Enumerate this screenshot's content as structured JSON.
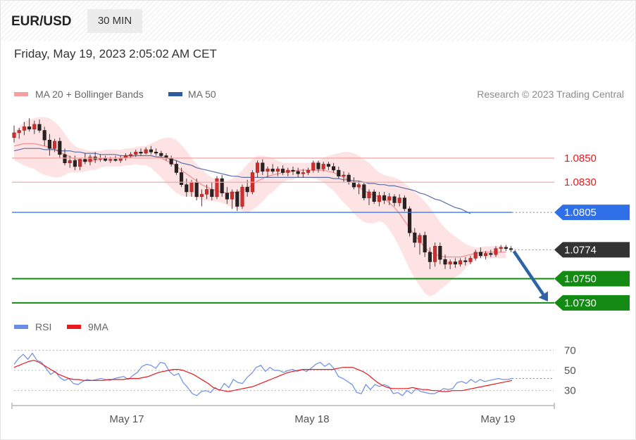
{
  "header": {
    "symbol": "EUR/USD",
    "timeframe": "30 MIN",
    "datetime": "Friday, May 19, 2023 2:05:02 AM CET"
  },
  "legend": {
    "ma20": "MA 20 + Bollinger Bands",
    "ma50": "MA 50",
    "rsi": "RSI",
    "rsi_ma": "9MA"
  },
  "copyright": "Research © 2023 Trading Central",
  "colors": {
    "ma20": "#f08e8e",
    "band": "#fcd9d9",
    "ma50": "#5b6fa8",
    "support": "#138a13",
    "resistance_line": "#f4a8a8",
    "resistance_text": "#e8181c",
    "pivot": "#2f6fe8",
    "last": "#333333",
    "arrow": "#2e63a5",
    "rsi": "#6a8ee8",
    "rsi_ma": "#e8181c"
  },
  "chart_data": {
    "type": "candlestick",
    "price_range": [
      1.0727,
      1.0889
    ],
    "levels": [
      {
        "value": 1.085,
        "label": "1.0850",
        "kind": "resistance"
      },
      {
        "value": 1.083,
        "label": "1.0830",
        "kind": "resistance"
      },
      {
        "value": 1.0805,
        "label": "1.0805",
        "kind": "pivot"
      },
      {
        "value": 1.0774,
        "label": "1.0774",
        "kind": "last"
      },
      {
        "value": 1.075,
        "label": "1.0750",
        "kind": "support"
      },
      {
        "value": 1.073,
        "label": "1.0730",
        "kind": "support"
      }
    ],
    "x_labels": [
      "May 17",
      "May 18",
      "May 19"
    ],
    "ohlc": [
      [
        1.0867,
        1.0877,
        1.0863,
        1.0871
      ],
      [
        1.0871,
        1.0875,
        1.0866,
        1.0873
      ],
      [
        1.0873,
        1.088,
        1.0869,
        1.0876
      ],
      [
        1.0876,
        1.0883,
        1.0872,
        1.0874
      ],
      [
        1.0874,
        1.0881,
        1.087,
        1.0878
      ],
      [
        1.0878,
        1.0882,
        1.0871,
        1.0873
      ],
      [
        1.0873,
        1.0876,
        1.086,
        1.0865
      ],
      [
        1.0865,
        1.087,
        1.0852,
        1.0858
      ],
      [
        1.0858,
        1.0866,
        1.0855,
        1.0864
      ],
      [
        1.0864,
        1.0867,
        1.085,
        1.0853
      ],
      [
        1.0853,
        1.0858,
        1.0844,
        1.0846
      ],
      [
        1.0846,
        1.0852,
        1.0842,
        1.0848
      ],
      [
        1.0848,
        1.0852,
        1.084,
        1.0843
      ],
      [
        1.0843,
        1.085,
        1.084,
        1.0849
      ],
      [
        1.0849,
        1.0854,
        1.0845,
        1.0847
      ],
      [
        1.0847,
        1.0853,
        1.0844,
        1.0851
      ],
      [
        1.0851,
        1.0855,
        1.0846,
        1.0849
      ],
      [
        1.0849,
        1.0853,
        1.0847,
        1.085
      ],
      [
        1.085,
        1.0852,
        1.0847,
        1.0848
      ],
      [
        1.0848,
        1.0851,
        1.0846,
        1.0849
      ],
      [
        1.0849,
        1.0852,
        1.0847,
        1.0848
      ],
      [
        1.0848,
        1.0852,
        1.0846,
        1.085
      ],
      [
        1.085,
        1.0854,
        1.0848,
        1.0852
      ],
      [
        1.0852,
        1.0855,
        1.085,
        1.0853
      ],
      [
        1.0853,
        1.0857,
        1.0851,
        1.0855
      ],
      [
        1.0855,
        1.0858,
        1.0852,
        1.0854
      ],
      [
        1.0854,
        1.0859,
        1.0853,
        1.0857
      ],
      [
        1.0857,
        1.086,
        1.0853,
        1.0855
      ],
      [
        1.0855,
        1.0858,
        1.0852,
        1.0854
      ],
      [
        1.0854,
        1.0856,
        1.085,
        1.0852
      ],
      [
        1.0852,
        1.0854,
        1.0848,
        1.085
      ],
      [
        1.085,
        1.0852,
        1.0843,
        1.0845
      ],
      [
        1.0845,
        1.0848,
        1.0836,
        1.0838
      ],
      [
        1.0838,
        1.0842,
        1.0826,
        1.0828
      ],
      [
        1.0828,
        1.0833,
        1.0818,
        1.0822
      ],
      [
        1.0822,
        1.0832,
        1.0818,
        1.083
      ],
      [
        1.083,
        1.0833,
        1.0815,
        1.0818
      ],
      [
        1.0818,
        1.0824,
        1.081,
        1.082
      ],
      [
        1.082,
        1.0828,
        1.0816,
        1.0824
      ],
      [
        1.0824,
        1.083,
        1.0815,
        1.0818
      ],
      [
        1.0818,
        1.0835,
        1.0816,
        1.0833
      ],
      [
        1.0833,
        1.0836,
        1.0818,
        1.0821
      ],
      [
        1.0821,
        1.0826,
        1.0812,
        1.0816
      ],
      [
        1.0816,
        1.0824,
        1.0808,
        1.0822
      ],
      [
        1.0822,
        1.0824,
        1.0806,
        1.081
      ],
      [
        1.081,
        1.0828,
        1.0808,
        1.0826
      ],
      [
        1.0826,
        1.0832,
        1.0818,
        1.0822
      ],
      [
        1.0822,
        1.084,
        1.082,
        1.0838
      ],
      [
        1.0838,
        1.0848,
        1.0834,
        1.0846
      ],
      [
        1.0846,
        1.0849,
        1.0836,
        1.0839
      ],
      [
        1.0839,
        1.0843,
        1.0834,
        1.0841
      ],
      [
        1.0841,
        1.0845,
        1.0837,
        1.0839
      ],
      [
        1.0839,
        1.0843,
        1.0835,
        1.0841
      ],
      [
        1.0841,
        1.0844,
        1.0836,
        1.0838
      ],
      [
        1.0838,
        1.0842,
        1.0835,
        1.084
      ],
      [
        1.084,
        1.0843,
        1.0836,
        1.0839
      ],
      [
        1.0839,
        1.0842,
        1.0834,
        1.0837
      ],
      [
        1.0837,
        1.0841,
        1.0834,
        1.0838
      ],
      [
        1.0838,
        1.0842,
        1.0836,
        1.084
      ],
      [
        1.084,
        1.0848,
        1.0838,
        1.0846
      ],
      [
        1.0846,
        1.0848,
        1.0838,
        1.0841
      ],
      [
        1.0841,
        1.0847,
        1.0839,
        1.0845
      ],
      [
        1.0845,
        1.0847,
        1.084,
        1.0843
      ],
      [
        1.0843,
        1.0846,
        1.0838,
        1.084
      ],
      [
        1.084,
        1.0843,
        1.0833,
        1.0835
      ],
      [
        1.0835,
        1.0839,
        1.083,
        1.0836
      ],
      [
        1.0836,
        1.0838,
        1.0828,
        1.083
      ],
      [
        1.083,
        1.0834,
        1.0824,
        1.0826
      ],
      [
        1.0826,
        1.0831,
        1.082,
        1.0828
      ],
      [
        1.0828,
        1.083,
        1.0815,
        1.0817
      ],
      [
        1.0817,
        1.0824,
        1.0811,
        1.0822
      ],
      [
        1.0822,
        1.0824,
        1.0812,
        1.0814
      ],
      [
        1.0814,
        1.0822,
        1.081,
        1.0819
      ],
      [
        1.0819,
        1.0822,
        1.0812,
        1.0815
      ],
      [
        1.0815,
        1.0821,
        1.0811,
        1.0818
      ],
      [
        1.0818,
        1.082,
        1.081,
        1.0813
      ],
      [
        1.0813,
        1.082,
        1.081,
        1.0817
      ],
      [
        1.0817,
        1.0819,
        1.0806,
        1.0808
      ],
      [
        1.0808,
        1.081,
        1.0785,
        1.0788
      ],
      [
        1.0788,
        1.0792,
        1.0776,
        1.078
      ],
      [
        1.078,
        1.0788,
        1.077,
        1.0786
      ],
      [
        1.0786,
        1.0789,
        1.0768,
        1.0772
      ],
      [
        1.0772,
        1.0776,
        1.0758,
        1.0764
      ],
      [
        1.0764,
        1.078,
        1.076,
        1.0777
      ],
      [
        1.0777,
        1.078,
        1.0762,
        1.0766
      ],
      [
        1.0766,
        1.077,
        1.0758,
        1.0762
      ],
      [
        1.0762,
        1.0766,
        1.0758,
        1.0764
      ],
      [
        1.0764,
        1.0767,
        1.0759,
        1.0762
      ],
      [
        1.0762,
        1.0767,
        1.076,
        1.0765
      ],
      [
        1.0765,
        1.0768,
        1.0761,
        1.0764
      ],
      [
        1.0764,
        1.0769,
        1.0762,
        1.0767
      ],
      [
        1.0767,
        1.0774,
        1.0765,
        1.0772
      ],
      [
        1.0772,
        1.0776,
        1.0767,
        1.0769
      ],
      [
        1.0769,
        1.0773,
        1.0766,
        1.0771
      ],
      [
        1.0771,
        1.0774,
        1.0768,
        1.077
      ],
      [
        1.077,
        1.0777,
        1.0768,
        1.0775
      ],
      [
        1.0775,
        1.0778,
        1.0772,
        1.0776
      ],
      [
        1.0776,
        1.0778,
        1.0773,
        1.0775
      ],
      [
        1.0775,
        1.0777,
        1.0772,
        1.0774
      ]
    ],
    "ma20": [
      1.086,
      1.0861,
      1.0862,
      1.0862,
      1.0862,
      1.0861,
      1.086,
      1.0859,
      1.0857,
      1.0855,
      1.0853,
      1.0851,
      1.0849,
      1.0848,
      1.0848,
      1.0848,
      1.0848,
      1.0849,
      1.085,
      1.085,
      1.085,
      1.085,
      1.0851,
      1.0851,
      1.0852,
      1.0852,
      1.0852,
      1.0852,
      1.0851,
      1.085,
      1.0848,
      1.0846,
      1.0843,
      1.084,
      1.0837,
      1.0834,
      1.0831,
      1.0828,
      1.0826,
      1.0824,
      1.0823,
      1.0822,
      1.0821,
      1.0821,
      1.0822,
      1.0823,
      1.0825,
      1.0828,
      1.0831,
      1.0833,
      1.0835,
      1.0836,
      1.0837,
      1.0838,
      1.0839,
      1.0839,
      1.084,
      1.084,
      1.084,
      1.084,
      1.084,
      1.084,
      1.0839,
      1.0838,
      1.0836,
      1.0834,
      1.0832,
      1.0829,
      1.0826,
      1.0823,
      1.0821,
      1.0819,
      1.0818,
      1.0816,
      1.0813,
      1.0809,
      1.0804,
      1.0798,
      1.0792,
      1.0786,
      1.0781,
      1.0776,
      1.0772,
      1.077,
      1.0769,
      1.0768,
      1.0768,
      1.0768,
      1.0768,
      1.0769,
      1.077,
      1.0771,
      1.0772,
      1.0772,
      1.0772,
      1.0772,
      1.0772,
      1.0772
    ],
    "band_upper": [
      1.0872,
      1.0876,
      1.088,
      1.0882,
      1.0883,
      1.0884,
      1.0884,
      1.0883,
      1.088,
      1.0876,
      1.087,
      1.0864,
      1.086,
      1.0858,
      1.0857,
      1.0856,
      1.0856,
      1.0856,
      1.0857,
      1.0857,
      1.0857,
      1.0857,
      1.0858,
      1.0858,
      1.0859,
      1.086,
      1.086,
      1.0862,
      1.0864,
      1.0866,
      1.0867,
      1.0867,
      1.0865,
      1.0861,
      1.0856,
      1.085,
      1.0845,
      1.0841,
      1.0837,
      1.0834,
      1.0832,
      1.0831,
      1.0831,
      1.0833,
      1.0836,
      1.084,
      1.0845,
      1.0849,
      1.0852,
      1.0852,
      1.0851,
      1.085,
      1.0848,
      1.0846,
      1.0846,
      1.0846,
      1.0846,
      1.0846,
      1.0846,
      1.0847,
      1.0848,
      1.085,
      1.0852,
      1.0853,
      1.0854,
      1.0855,
      1.0855,
      1.0854,
      1.0852,
      1.0849,
      1.0846,
      1.0842,
      1.0838,
      1.0836,
      1.0835,
      1.0834,
      1.0832,
      1.0829,
      1.0826,
      1.0822,
      1.0818,
      1.0814,
      1.0809,
      1.0803,
      1.0797,
      1.0792,
      1.0788,
      1.0785,
      1.0782,
      1.0779,
      1.0777,
      1.0776,
      1.0776,
      1.0777,
      1.0777,
      1.0777,
      1.0777,
      1.0777
    ],
    "band_lower": [
      1.0848,
      1.0846,
      1.0844,
      1.0842,
      1.0841,
      1.0838,
      1.0836,
      1.0835,
      1.0834,
      1.0834,
      1.0836,
      1.0838,
      1.0838,
      1.0838,
      1.0839,
      1.084,
      1.084,
      1.0842,
      1.0843,
      1.0843,
      1.0843,
      1.0843,
      1.0844,
      1.0844,
      1.0845,
      1.0844,
      1.0844,
      1.0842,
      1.0838,
      1.0834,
      1.0829,
      1.0825,
      1.0821,
      1.0819,
      1.0818,
      1.0818,
      1.0817,
      1.0815,
      1.0815,
      1.0814,
      1.0814,
      1.0813,
      1.0811,
      1.0809,
      1.0808,
      1.0806,
      1.0805,
      1.0807,
      1.081,
      1.0814,
      1.0819,
      1.0822,
      1.0826,
      1.083,
      1.0832,
      1.0832,
      1.0834,
      1.0834,
      1.0834,
      1.0833,
      1.0832,
      1.083,
      1.0826,
      1.0823,
      1.0818,
      1.0813,
      1.0809,
      1.0804,
      1.08,
      1.0797,
      1.0796,
      1.0796,
      1.0798,
      1.0796,
      1.0791,
      1.0784,
      1.0776,
      1.0767,
      1.0758,
      1.075,
      1.0744,
      1.0738,
      1.0735,
      1.0737,
      1.0741,
      1.0744,
      1.0748,
      1.0751,
      1.0754,
      1.0759,
      1.0763,
      1.0766,
      1.0768,
      1.0767,
      1.0767,
      1.0767,
      1.0767,
      1.0767
    ],
    "ma50": [
      1.0856,
      1.0857,
      1.0858,
      1.0858,
      1.0858,
      1.0858,
      1.0857,
      1.0857,
      1.0857,
      1.0856,
      1.0856,
      1.0856,
      1.0855,
      1.0855,
      1.0854,
      1.0854,
      1.0854,
      1.0853,
      1.0853,
      1.0853,
      1.0853,
      1.0852,
      1.0852,
      1.0852,
      1.0852,
      1.0852,
      1.0852,
      1.0852,
      1.0851,
      1.0851,
      1.085,
      1.0849,
      1.0848,
      1.0846,
      1.0845,
      1.0844,
      1.0842,
      1.0841,
      1.084,
      1.0839,
      1.0838,
      1.0837,
      1.0836,
      1.0835,
      1.0835,
      1.0834,
      1.0834,
      1.0834,
      1.0834,
      1.0834,
      1.0834,
      1.0834,
      1.0834,
      1.0834,
      1.0834,
      1.0834,
      1.0834,
      1.0834,
      1.0834,
      1.0834,
      1.0834,
      1.0834,
      1.0834,
      1.0833,
      1.0833,
      1.0832,
      1.0832,
      1.0831,
      1.0831,
      1.083,
      1.0829,
      1.0829,
      1.0828,
      1.0828,
      1.0827,
      1.0827,
      1.0826,
      1.0825,
      1.0824,
      1.0823,
      1.0821,
      1.082,
      1.0818,
      1.0816,
      1.0815,
      1.0813,
      1.0811,
      1.0809,
      1.0808,
      1.0806,
      1.0804
    ],
    "rsi_levels": [
      70,
      50,
      30
    ],
    "rsi_range": [
      20,
      80
    ],
    "rsi": [
      56,
      62,
      66,
      61,
      67,
      60,
      58,
      52,
      46,
      49,
      43,
      40,
      42,
      37,
      36,
      39,
      41,
      40,
      41,
      42,
      41,
      40,
      42,
      43,
      44,
      41,
      45,
      48,
      54,
      56,
      55,
      52,
      58,
      57,
      49,
      45,
      47,
      38,
      33,
      27,
      25,
      29,
      30,
      28,
      33,
      30,
      37,
      33,
      41,
      38,
      37,
      43,
      47,
      53,
      55,
      49,
      53,
      50,
      50,
      48,
      50,
      51,
      49,
      51,
      49,
      52,
      56,
      58,
      54,
      57,
      52,
      44,
      42,
      39,
      36,
      28,
      27,
      36,
      31,
      36,
      34,
      36,
      34,
      27,
      28,
      25,
      30,
      27,
      32,
      29,
      28,
      27,
      27,
      29,
      32,
      31,
      32,
      38,
      39,
      37,
      41,
      38,
      41,
      39,
      40,
      41,
      42,
      41,
      41,
      42
    ],
    "rsi_ma": [
      53,
      55,
      57,
      59,
      60,
      58,
      55,
      52,
      49,
      46,
      44,
      42,
      41,
      41,
      40,
      40,
      40,
      40,
      40,
      41,
      41,
      41,
      41,
      42,
      42,
      42,
      43,
      44,
      46,
      48,
      49,
      50,
      51,
      51,
      50,
      48,
      46,
      43,
      40,
      37,
      33,
      31,
      30,
      29,
      30,
      31,
      32,
      33,
      34,
      36,
      38,
      40,
      42,
      44,
      46,
      48,
      49,
      50,
      51,
      51,
      51,
      51,
      51,
      51,
      51,
      52,
      53,
      53,
      53,
      51,
      49,
      46,
      42,
      38,
      35,
      33,
      32,
      32,
      32,
      32,
      33,
      32,
      31,
      31,
      30,
      30,
      29,
      29,
      30,
      30,
      30,
      31,
      32,
      33,
      34,
      35,
      36,
      37,
      38,
      39,
      40
    ]
  }
}
